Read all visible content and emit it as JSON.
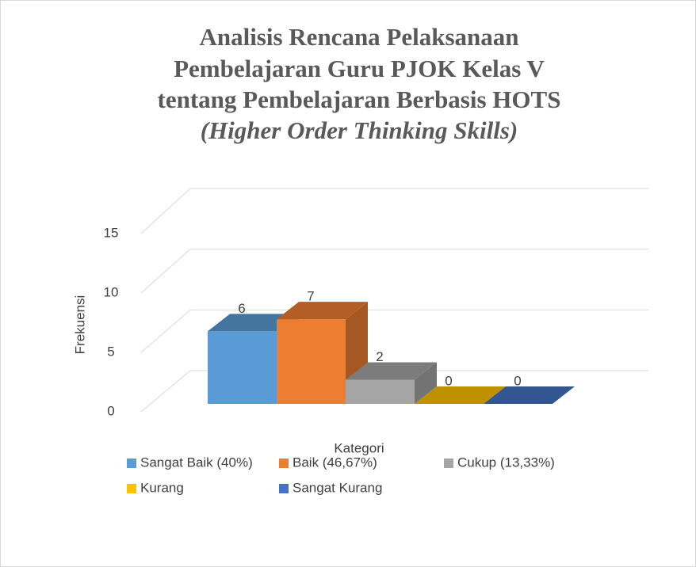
{
  "chart_data": {
    "type": "bar3d",
    "title": [
      "Analisis Rencana Pelaksanaan",
      "Pembelajaran Guru PJOK Kelas V",
      "tentang Pembelajaran Berbasis HOTS",
      "(Higher Order Thinking Skills)"
    ],
    "x_label": "Kategori",
    "y_label": "Frekuensi",
    "series": [
      {
        "name": "Sangat Baik (40%)",
        "color": "#5b9bd5",
        "values": [
          6
        ]
      },
      {
        "name": "Baik (46,67%)",
        "color": "#ed7d31",
        "values": [
          7
        ]
      },
      {
        "name": "Cukup (13,33%)",
        "color": "#a5a5a5",
        "values": [
          2
        ]
      },
      {
        "name": "Kurang",
        "color": "#ffc000",
        "values": [
          0
        ]
      },
      {
        "name": "Sangat Kurang",
        "color": "#4472c4",
        "values": [
          0
        ]
      }
    ],
    "ylim": [
      0,
      15
    ],
    "yticks": [
      0,
      5,
      10,
      15
    ],
    "grid": true,
    "legend": "bottom"
  }
}
